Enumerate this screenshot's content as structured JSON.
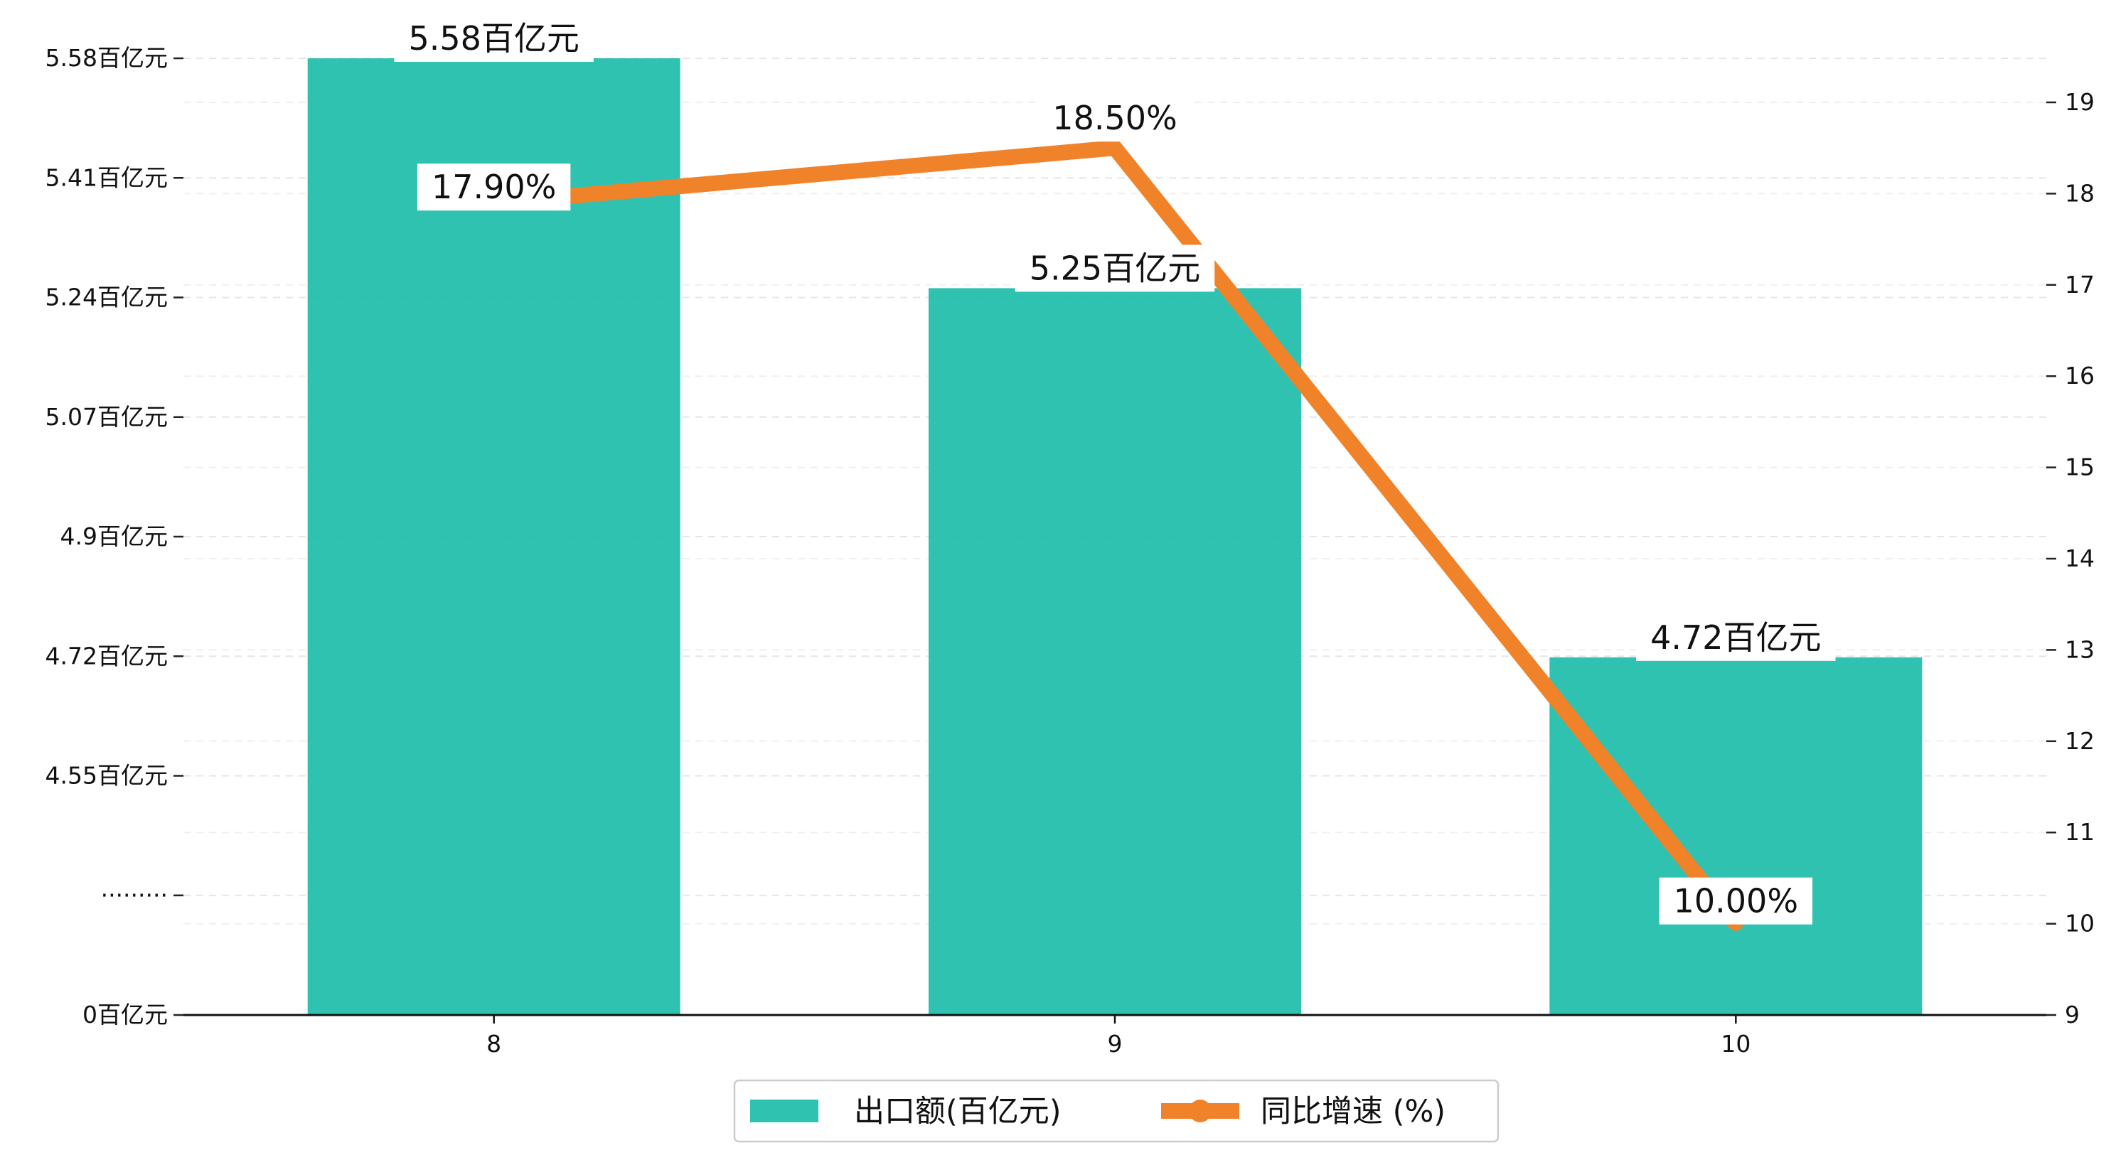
{
  "chart_data": {
    "type": "bar",
    "categories": [
      "8",
      "9",
      "10"
    ],
    "series": [
      {
        "name": "出口额(百亿元)",
        "kind": "bar",
        "axis": "left",
        "color": "#1abba9",
        "values": [
          5.58,
          5.25,
          4.72
        ],
        "labels": [
          "5.58百亿元",
          "5.25百亿元",
          "4.72百亿元"
        ]
      },
      {
        "name": "同比增速 (%)",
        "kind": "line",
        "axis": "right",
        "color": "#f0822a",
        "values": [
          17.9,
          18.5,
          10.0
        ],
        "labels": [
          "17.90%",
          "18.50%",
          "10.00%"
        ]
      }
    ],
    "y_left": {
      "ticks": [
        "0百亿元",
        "·········",
        "4.55百亿元",
        "4.72百亿元",
        "4.9百亿元",
        "5.07百亿元",
        "5.24百亿元",
        "5.41百亿元",
        "5.58百亿元"
      ],
      "broken_axis": true,
      "break_at": 4.38,
      "range": [
        0,
        5.58
      ]
    },
    "y_right": {
      "ticks": [
        "9",
        "10",
        "11",
        "12",
        "13",
        "14",
        "15",
        "16",
        "17",
        "18",
        "19"
      ],
      "range": [
        9,
        19.5
      ]
    },
    "grid": true,
    "legend_position": "bottom-center"
  }
}
